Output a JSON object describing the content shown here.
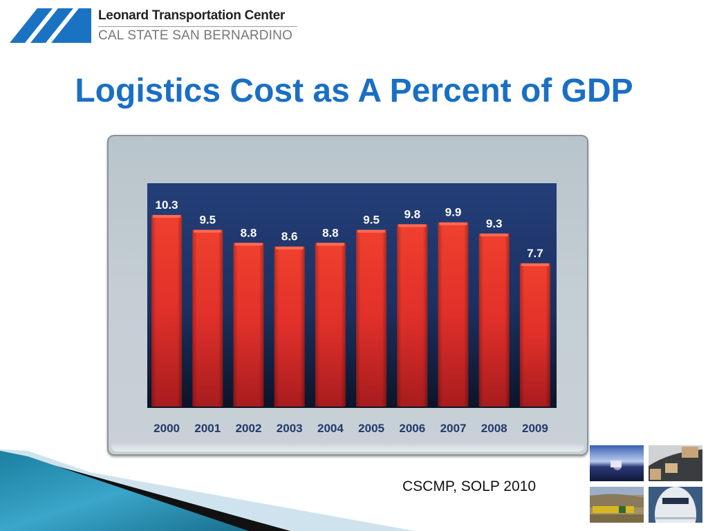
{
  "logo": {
    "name": "Leonard Transportation Center",
    "subtitle": "CAL STATE SAN BERNARDINO",
    "color": "#1a73c2"
  },
  "title": "Logistics Cost as A Percent of GDP",
  "source": "CSCMP, SOLP 2010",
  "photos": [
    {
      "name": "truck-photo"
    },
    {
      "name": "conveyor-boxes-photo"
    },
    {
      "name": "train-photo"
    },
    {
      "name": "airplane-photo"
    }
  ],
  "chart_data": {
    "type": "bar",
    "title": "Logistics Cost as A Percent of GDP",
    "xlabel": "",
    "ylabel": "",
    "categories": [
      "2000",
      "2001",
      "2002",
      "2003",
      "2004",
      "2005",
      "2006",
      "2007",
      "2008",
      "2009"
    ],
    "values": [
      10.3,
      9.5,
      8.8,
      8.6,
      8.8,
      9.5,
      9.8,
      9.9,
      9.3,
      7.7
    ],
    "value_labels": [
      "10.3",
      "9.5",
      "8.8",
      "8.6",
      "8.8",
      "9.5",
      "9.8",
      "9.9",
      "9.3",
      "7.7"
    ],
    "ylim": [
      0,
      12
    ],
    "grid": false,
    "legend": "none",
    "colors": {
      "bar": "#e8332a",
      "plot_bg": "#213a72",
      "label": "#ffffff",
      "category": "#24386a"
    }
  }
}
